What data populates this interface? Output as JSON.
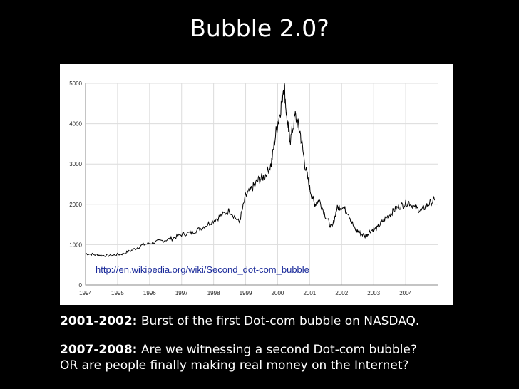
{
  "slide": {
    "title": "Bubble 2.0?",
    "link": "http://en.wikipedia.org/wiki/Second_dot-com_bubble",
    "captions": [
      {
        "bold": "2001-2002:",
        "text": " Burst of the first Dot-com bubble on NASDAQ."
      },
      {
        "bold": "2007-2008:",
        "text": " Are we witnessing a second Dot-com bubble?"
      }
    ],
    "caption_line3": "OR are people finally making real money on the Internet?"
  },
  "chart_data": {
    "type": "line",
    "title": "",
    "xlabel": "",
    "ylabel": "",
    "xlim": [
      1994,
      2005
    ],
    "ylim": [
      0,
      5000
    ],
    "x_ticks": [
      "1994",
      "1995",
      "1996",
      "1997",
      "1998",
      "1999",
      "2000",
      "2001",
      "2002",
      "2003",
      "2004"
    ],
    "y_ticks": [
      "0",
      "1000",
      "2000",
      "3000",
      "4000",
      "5000"
    ],
    "grid": true,
    "line_color": "#000000",
    "series": [
      {
        "x": [
          1994.0,
          1994.3,
          1994.6,
          1994.9,
          1995.2,
          1995.5,
          1995.8,
          1996.1,
          1996.4,
          1996.7,
          1997.0,
          1997.3,
          1997.6,
          1997.9,
          1998.2,
          1998.5,
          1998.8,
          1999.0,
          1999.2,
          1999.4,
          1999.6,
          1999.8,
          1999.95,
          2000.1,
          2000.2,
          2000.3,
          2000.4,
          2000.55,
          2000.7,
          2000.85,
          2001.0,
          2001.15,
          2001.3,
          2001.5,
          2001.7,
          2001.85,
          2002.0,
          2002.2,
          2002.4,
          2002.55,
          2002.75,
          2002.9,
          2003.1,
          2003.3,
          2003.5,
          2003.7,
          2003.9,
          2004.1,
          2004.3,
          2004.5,
          2004.7,
          2004.9
        ],
        "y": [
          780,
          750,
          730,
          740,
          780,
          880,
          1000,
          1050,
          1100,
          1150,
          1250,
          1300,
          1400,
          1550,
          1700,
          1850,
          1550,
          2200,
          2400,
          2600,
          2700,
          3000,
          3800,
          4400,
          5000,
          4000,
          3600,
          4200,
          3800,
          3000,
          2400,
          2000,
          2100,
          1700,
          1400,
          1900,
          1950,
          1800,
          1400,
          1300,
          1200,
          1350,
          1400,
          1600,
          1750,
          1900,
          1980,
          2050,
          1900,
          1850,
          2000,
          2100
        ]
      }
    ]
  }
}
